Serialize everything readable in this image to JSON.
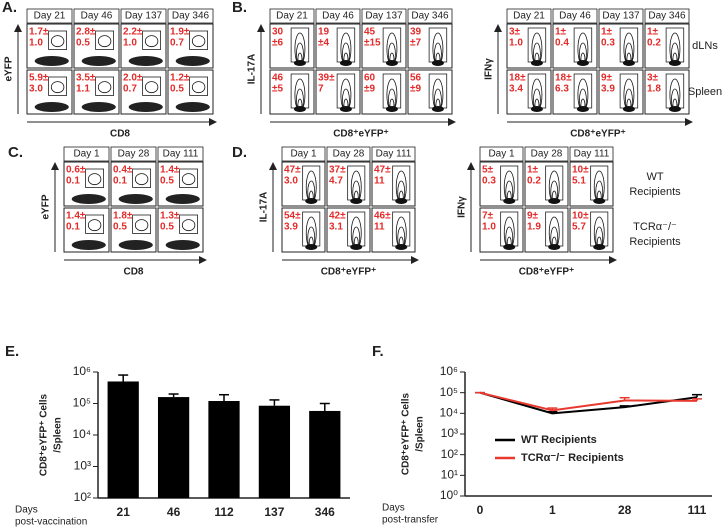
{
  "panels": [
    {
      "label": "A.",
      "plots": [
        {
          "y_label": "eYFP",
          "x_label": "CD8",
          "days": [
            "Day 21",
            "Day 46",
            "Day 137",
            "Day 346"
          ],
          "cells": [
            [
              [
                "1.7±",
                "1.0"
              ],
              [
                "2.8±",
                "0.5"
              ],
              [
                "2.2±",
                "1.0"
              ],
              [
                "1.9±",
                "0.7"
              ]
            ],
            [
              [
                "5.9±",
                "3.0"
              ],
              [
                "3.5±",
                "1.1"
              ],
              [
                "2.0±",
                "0.7"
              ],
              [
                "1.2±",
                "0.5"
              ]
            ]
          ]
        }
      ]
    },
    {
      "label": "B.",
      "plots": [
        {
          "y_label": "IL-17A",
          "x_label": "CD8⁺eYFP⁺",
          "days": [
            "Day 21",
            "Day 46",
            "Day 137",
            "Day 346"
          ],
          "cells": [
            [
              [
                "30",
                "±6"
              ],
              [
                "19",
                "±4"
              ],
              [
                "45",
                "±15"
              ],
              [
                "39",
                "±7"
              ]
            ],
            [
              [
                "46",
                "±5"
              ],
              [
                "39±",
                "7"
              ],
              [
                "60",
                "±9"
              ],
              [
                "56",
                "±9"
              ]
            ]
          ]
        },
        {
          "y_label": "IFNγ",
          "x_label": "CD8⁺eYFP⁺",
          "days": [
            "Day 21",
            "Day 46",
            "Day 137",
            "Day 346"
          ],
          "cells": [
            [
              [
                "3±",
                "1.0"
              ],
              [
                "1±",
                "0.4"
              ],
              [
                "1±",
                "0.3"
              ],
              [
                "1±",
                "0.2"
              ]
            ],
            [
              [
                "18±",
                "3.4"
              ],
              [
                "18±",
                "6.3"
              ],
              [
                "9±",
                "3.9"
              ],
              [
                "3±",
                "1.8"
              ]
            ]
          ]
        }
      ],
      "row_labels": [
        [
          "dLNs"
        ],
        [
          "Spleen"
        ]
      ]
    },
    {
      "label": "C.",
      "plots": [
        {
          "y_label": "eYFP",
          "x_label": "CD8",
          "days": [
            "Day 1",
            "Day 28",
            "Day 111"
          ],
          "cells": [
            [
              [
                "0.6±",
                "0.1"
              ],
              [
                "0.4±",
                "0.1"
              ],
              [
                "1.4±",
                "0.5"
              ]
            ],
            [
              [
                "1.4±",
                "0.1"
              ],
              [
                "1.8±",
                "0.5"
              ],
              [
                "1.3±",
                "0.5"
              ]
            ]
          ]
        }
      ]
    },
    {
      "label": "D.",
      "plots": [
        {
          "y_label": "IL-17A",
          "x_label": "CD8⁺eYFP⁺",
          "days": [
            "Day 1",
            "Day 28",
            "Day 111"
          ],
          "cells": [
            [
              [
                "47±",
                "3.0"
              ],
              [
                "37±",
                "4.7"
              ],
              [
                "47±",
                "11"
              ]
            ],
            [
              [
                "54±",
                "3.9"
              ],
              [
                "42±",
                "3.1"
              ],
              [
                "46±",
                "11"
              ]
            ]
          ]
        },
        {
          "y_label": "IFNγ",
          "x_label": "CD8⁺eYFP⁺",
          "days": [
            "Day 1",
            "Day 28",
            "Day 111"
          ],
          "cells": [
            [
              [
                "5±",
                "0.3"
              ],
              [
                "1±",
                "0.2"
              ],
              [
                "10±",
                "5.1"
              ]
            ],
            [
              [
                "7±",
                "1.0"
              ],
              [
                "9±",
                "1.9"
              ],
              [
                "10±",
                "5.7"
              ]
            ]
          ]
        }
      ],
      "row_labels": [
        [
          "WT",
          "Recipients"
        ],
        [
          "TCRα⁻/⁻",
          "Recipients"
        ]
      ]
    }
  ],
  "chart_data": [
    {
      "type": "bar",
      "panel_label": "E.",
      "y_label": [
        "CD8⁺eYFP⁺ Cells",
        "/Spleen"
      ],
      "x_label": [
        "Days",
        "post-vaccination"
      ],
      "categories": [
        "21",
        "46",
        "112",
        "137",
        "346"
      ],
      "values": [
        500000,
        160000,
        120000,
        85000,
        58000
      ],
      "errors": [
        300000,
        40000,
        70000,
        45000,
        42000
      ],
      "color": "#000000",
      "log_y": true,
      "ylim": [
        100,
        1000000
      ],
      "yticks": [
        {
          "value": 100,
          "label": "10²"
        },
        {
          "value": 1000,
          "label": "10³"
        },
        {
          "value": 10000,
          "label": "10⁴"
        },
        {
          "value": 100000,
          "label": "10⁵"
        },
        {
          "value": 1000000,
          "label": "10⁶"
        }
      ]
    },
    {
      "type": "line",
      "panel_label": "F.",
      "y_label": [
        "CD8⁺eYFP⁺ Cells",
        "/Spleen"
      ],
      "x_label": [
        "Days",
        "post-transfer"
      ],
      "categories": [
        "0",
        "1",
        "28",
        "111"
      ],
      "series": [
        {
          "name": "WT Recipients",
          "color": "#000000",
          "values": [
            100000,
            10000,
            20000,
            60000
          ],
          "errors": [
            0,
            2000,
            3000,
            20000
          ]
        },
        {
          "name": "TCRα⁻/⁻ Recipients",
          "color": "#e8392f",
          "values": [
            100000,
            14000,
            42000,
            40000
          ],
          "errors": [
            0,
            4000,
            15000,
            10000
          ]
        }
      ],
      "log_y": true,
      "ylim": [
        1,
        1000000
      ],
      "legend": "right",
      "yticks": [
        {
          "value": 1,
          "label": "10⁰"
        },
        {
          "value": 10,
          "label": "10¹"
        },
        {
          "value": 100,
          "label": "10²"
        },
        {
          "value": 1000,
          "label": "10³"
        },
        {
          "value": 10000,
          "label": "10⁴"
        },
        {
          "value": 100000,
          "label": "10⁵"
        },
        {
          "value": 1000000,
          "label": "10⁶"
        }
      ]
    }
  ]
}
